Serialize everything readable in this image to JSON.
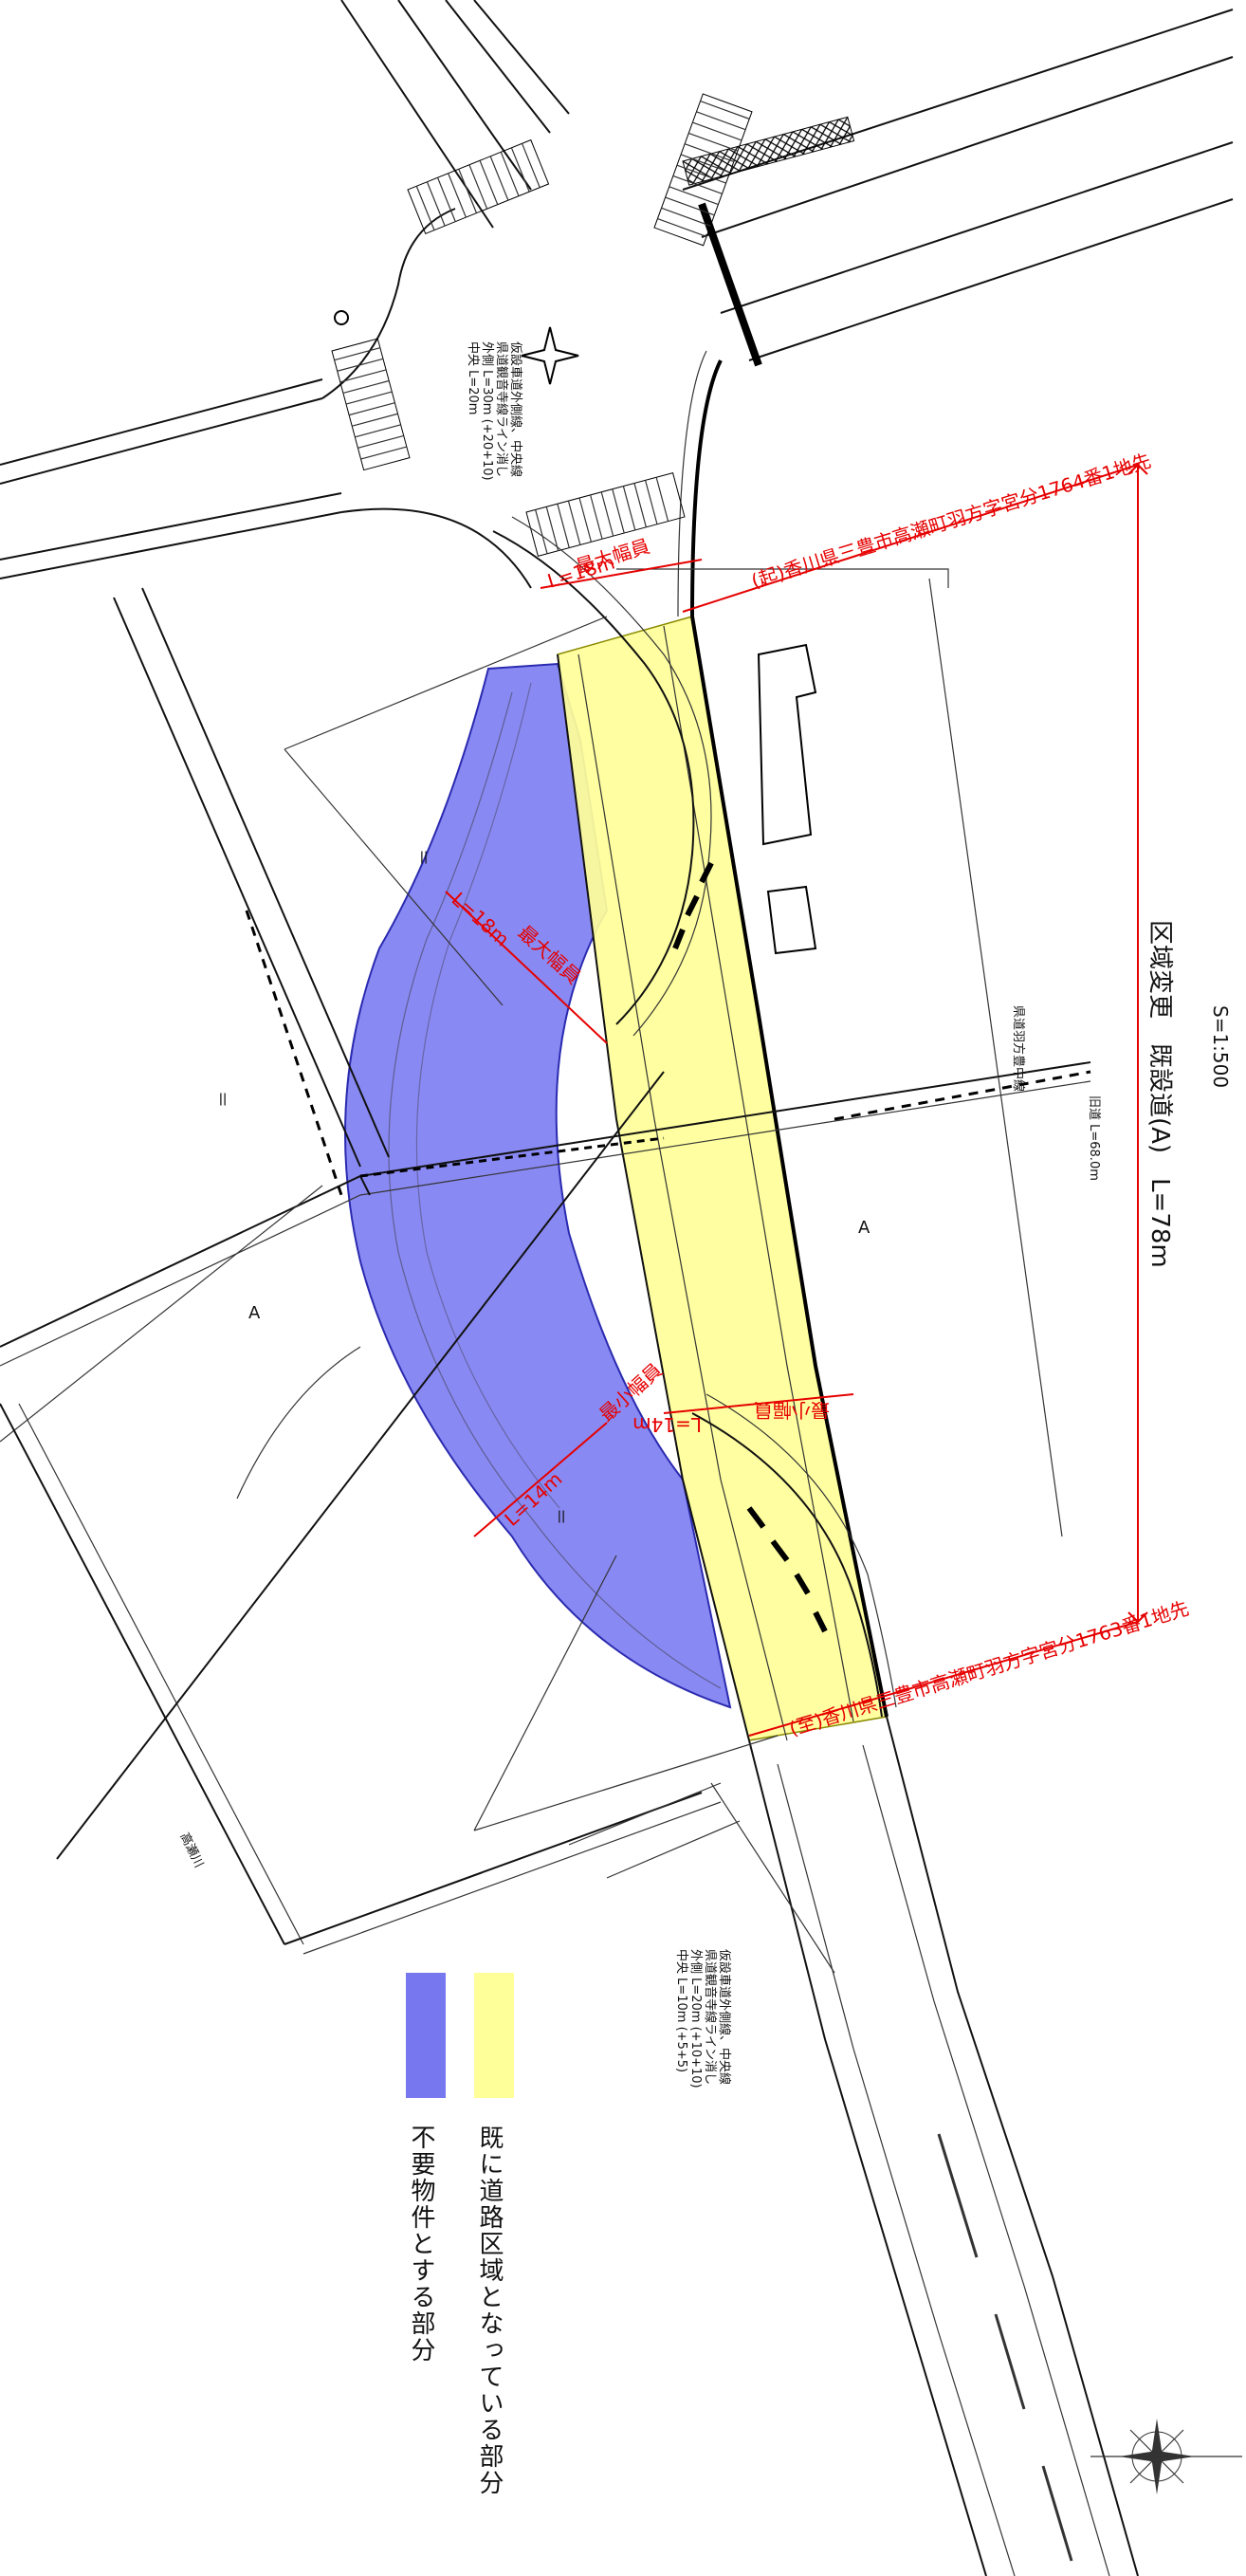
{
  "drawing": {
    "title": "区域変更　既設道(A)　L=78m",
    "scale": "S=1:500",
    "section_marker": "A",
    "equals_mark": "＝"
  },
  "red_annotations": {
    "start_point": "(起)香川県三豊市高瀬町羽方字宮分1764番1地先",
    "end_point": "(至)香川県三豊市高瀬町羽方字宮分1763番1地先",
    "max_width_1": "最大幅員",
    "max_width_2": "最大幅員",
    "min_width_1": "最小幅員",
    "min_width_2": "最小幅員",
    "width_value_1": "L=18m",
    "width_value_2": "L=14m",
    "width_value_3": "L=14m",
    "width_value_4": "L=18m"
  },
  "notes": {
    "upper_note_1": "仮設車道外側線、中央線",
    "upper_note_2": "県道観音寺線ライン消し",
    "upper_note_3": "外側 L=30m (+20+10)",
    "upper_note_4": "中央 L=20m",
    "lower_note_1": "仮設車道外側線、中央線",
    "lower_note_2": "県道観音寺線ライン消し",
    "lower_note_3": "外側 L=20m (+10+10)",
    "lower_note_4": "中央 L=10m (+5+5)",
    "road_label_1": "県道羽方豊中線",
    "road_label_2": "旧道 L=68.0m",
    "road_label_3": "高瀬川"
  },
  "legend": {
    "items": [
      {
        "label": "既に道路区域となっている部分",
        "color": "#ffff99"
      },
      {
        "label": "不要物件とする部分",
        "color": "#7777f0"
      }
    ]
  },
  "colors": {
    "yellow_area": "#ffff99",
    "blue_area": "#6f6ff0",
    "annotation_red": "#e60000"
  }
}
